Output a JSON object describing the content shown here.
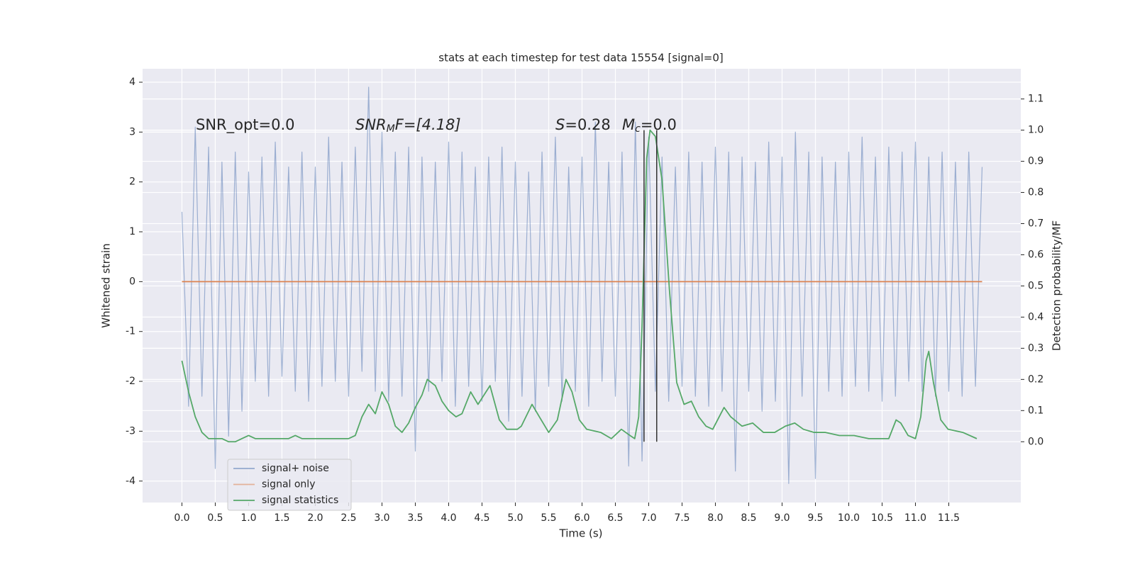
{
  "chart_data": {
    "type": "line",
    "title": "stats at each timestep for test data 15554 [signal=0]",
    "xlabel": "Time (s)",
    "ylabel": "Whitened strain",
    "y2label": "Detection probability/MF",
    "background": "#eaeaf2",
    "grid": true,
    "legend": "lower left",
    "xlim": [
      -0.59,
      12.58
    ],
    "ylim": [
      -4.43,
      4.27
    ],
    "y2lim": [
      -0.195,
      1.197
    ],
    "xticks": [
      {
        "value": 0,
        "label": "0.0"
      },
      0.5,
      {
        "value": 1,
        "label": "1.0"
      },
      1.5,
      {
        "value": 2,
        "label": "2.0"
      },
      2.5,
      {
        "value": 3,
        "label": "3.0"
      },
      3.5,
      {
        "value": 4,
        "label": "4.0"
      },
      4.5,
      {
        "value": 5,
        "label": "5.0"
      },
      5.5,
      {
        "value": 6,
        "label": "6.0"
      },
      6.5,
      {
        "value": 7,
        "label": "7.0"
      },
      7.5,
      {
        "value": 8,
        "label": "8.0"
      },
      8.5,
      {
        "value": 9,
        "label": "9.0"
      },
      9.5,
      {
        "value": 10,
        "label": "10.0"
      },
      10.5,
      {
        "value": 11,
        "label": "11.0"
      },
      11.5
    ],
    "yticks": [
      -4,
      -3,
      -2,
      -1,
      0,
      1,
      2,
      3,
      4
    ],
    "y2ticks": [
      {
        "value": 0,
        "label": "0.0"
      },
      0.1,
      0.2,
      0.3,
      0.4,
      0.5,
      0.6,
      0.7,
      0.8,
      0.9,
      {
        "value": 1,
        "label": "1.0"
      },
      1.1
    ],
    "annotations": [
      {
        "text": "SNR_opt=0.0"
      },
      {
        "italic": "SNR",
        "sub": "M",
        "text": "F=[4.18]"
      },
      {
        "italic": "S",
        "text": "=0.28"
      },
      {
        "italic": "M",
        "sub": "c",
        "text": "=0.0"
      }
    ],
    "vlines": {
      "x": [
        6.93,
        7.12
      ],
      "ymin": 0,
      "ymax": 1,
      "axis": "y2",
      "color": "#333333"
    },
    "series": [
      {
        "name": "signal+ noise",
        "color": "#4c72b0",
        "x": [
          0,
          0.1,
          0.2,
          0.3,
          0.4,
          0.5,
          0.6,
          0.7,
          0.8,
          0.9,
          1,
          1.1,
          1.2,
          1.3,
          1.4,
          1.5,
          1.6,
          1.7,
          1.8,
          1.9,
          2,
          2.1,
          2.2,
          2.3,
          2.4,
          2.5,
          2.6,
          2.7,
          2.8,
          2.9,
          3,
          3.1,
          3.2,
          3.3,
          3.4,
          3.5,
          3.6,
          3.7,
          3.8,
          3.9,
          4,
          4.1,
          4.2,
          4.3,
          4.4,
          4.5,
          4.6,
          4.7,
          4.8,
          4.9,
          5,
          5.1,
          5.2,
          5.3,
          5.4,
          5.5,
          5.6,
          5.7,
          5.8,
          5.9,
          6,
          6.1,
          6.2,
          6.3,
          6.4,
          6.5,
          6.6,
          6.7,
          6.8,
          6.9,
          7,
          7.1,
          7.2,
          7.3,
          7.4,
          7.5,
          7.6,
          7.7,
          7.8,
          7.9,
          8,
          8.1,
          8.2,
          8.3,
          8.4,
          8.5,
          8.6,
          8.7,
          8.8,
          8.9,
          9,
          9.1,
          9.2,
          9.3,
          9.4,
          9.5,
          9.6,
          9.7,
          9.8,
          9.9,
          10,
          10.1,
          10.2,
          10.3,
          10.4,
          10.5,
          10.6,
          10.7,
          10.8,
          10.9,
          11,
          11.1,
          11.2,
          11.3,
          11.4,
          11.5,
          11.6,
          11.7,
          11.8,
          11.9,
          12
        ],
        "values": [
          1.4,
          -2.5,
          3.1,
          -2.3,
          2.7,
          -3.75,
          2.4,
          -3.1,
          2.6,
          -2.6,
          2.2,
          -2.0,
          2.5,
          -2.3,
          2.8,
          -1.9,
          2.3,
          -2.2,
          2.6,
          -2.4,
          2.3,
          -2.1,
          2.9,
          -2.0,
          2.4,
          -2.3,
          2.7,
          -1.8,
          3.9,
          -2.2,
          3.0,
          -2.4,
          2.6,
          -2.3,
          2.7,
          -3.4,
          2.5,
          -2.2,
          2.4,
          -2.0,
          2.8,
          -2.5,
          2.6,
          -2.1,
          2.3,
          -2.4,
          2.5,
          -2.0,
          2.7,
          -2.8,
          2.4,
          -2.3,
          2.2,
          -2.6,
          2.6,
          -2.1,
          2.9,
          -2.4,
          2.3,
          -2.2,
          2.5,
          -2.5,
          3.2,
          -2.0,
          2.4,
          -2.3,
          2.6,
          -3.7,
          3.2,
          -3.6,
          2.9,
          -2.2,
          2.5,
          -2.4,
          2.3,
          -2.1,
          2.6,
          -2.3,
          2.4,
          -2.5,
          2.7,
          -2.2,
          2.6,
          -3.8,
          2.5,
          -2.2,
          2.4,
          -2.6,
          2.8,
          -2.4,
          2.5,
          -4.05,
          3.0,
          -2.3,
          2.6,
          -3.95,
          2.5,
          -2.2,
          2.4,
          -2.3,
          2.6,
          -2.1,
          2.9,
          -2.2,
          2.5,
          -2.4,
          2.7,
          -2.3,
          2.6,
          -2.0,
          2.8,
          -2.2,
          2.5,
          -2.3,
          2.6,
          -2.2,
          2.4,
          -2.3,
          2.6,
          -2.1,
          2.3
        ]
      },
      {
        "name": "signal only",
        "color": "#dd8452",
        "x": [
          0,
          12
        ],
        "values": [
          0,
          0
        ]
      },
      {
        "name": "signal statistics",
        "color": "#55a868",
        "axis": "y2",
        "x": [
          0,
          0.1,
          0.2,
          0.3,
          0.4,
          0.5,
          0.6,
          0.7,
          0.8,
          0.9,
          1,
          1.1,
          1.2,
          1.3,
          1.4,
          1.5,
          1.6,
          1.7,
          1.8,
          1.9,
          2,
          2.1,
          2.2,
          2.3,
          2.4,
          2.5,
          2.6,
          2.7,
          2.8,
          2.9,
          3,
          3.1,
          3.2,
          3.3,
          3.4,
          3.5,
          3.6,
          3.68,
          3.8,
          3.9,
          4,
          4.11,
          4.2,
          4.33,
          4.44,
          4.62,
          4.76,
          4.87,
          5.03,
          5.09,
          5.25,
          5.36,
          5.5,
          5.63,
          5.76,
          5.85,
          5.96,
          6.07,
          6.28,
          6.44,
          6.59,
          6.72,
          6.79,
          6.85,
          6.9,
          6.97,
          7.02,
          7.1,
          7.2,
          7.31,
          7.42,
          7.53,
          7.64,
          7.75,
          7.86,
          7.96,
          8.13,
          8.23,
          8.4,
          8.56,
          8.72,
          8.89,
          9.05,
          9.19,
          9.32,
          9.48,
          9.65,
          9.86,
          10.08,
          10.3,
          10.51,
          10.6,
          10.71,
          10.78,
          10.89,
          11,
          11.08,
          11.16,
          11.2,
          11.27,
          11.38,
          11.49,
          11.71,
          11.92
        ],
        "values": [
          0.26,
          0.16,
          0.08,
          0.03,
          0.01,
          0.01,
          0.01,
          0.0,
          0.0,
          0.01,
          0.02,
          0.01,
          0.01,
          0.01,
          0.01,
          0.01,
          0.01,
          0.02,
          0.01,
          0.01,
          0.01,
          0.01,
          0.01,
          0.01,
          0.01,
          0.01,
          0.02,
          0.08,
          0.12,
          0.09,
          0.16,
          0.12,
          0.05,
          0.03,
          0.06,
          0.11,
          0.15,
          0.2,
          0.18,
          0.13,
          0.1,
          0.08,
          0.09,
          0.16,
          0.12,
          0.18,
          0.07,
          0.04,
          0.04,
          0.05,
          0.12,
          0.08,
          0.03,
          0.07,
          0.2,
          0.16,
          0.07,
          0.04,
          0.03,
          0.01,
          0.04,
          0.02,
          0.01,
          0.08,
          0.37,
          0.91,
          1.0,
          0.98,
          0.84,
          0.49,
          0.19,
          0.12,
          0.13,
          0.08,
          0.05,
          0.04,
          0.11,
          0.08,
          0.05,
          0.06,
          0.03,
          0.03,
          0.05,
          0.06,
          0.04,
          0.03,
          0.03,
          0.02,
          0.02,
          0.01,
          0.01,
          0.01,
          0.07,
          0.06,
          0.02,
          0.01,
          0.08,
          0.26,
          0.29,
          0.19,
          0.07,
          0.04,
          0.03,
          0.01
        ]
      }
    ]
  }
}
